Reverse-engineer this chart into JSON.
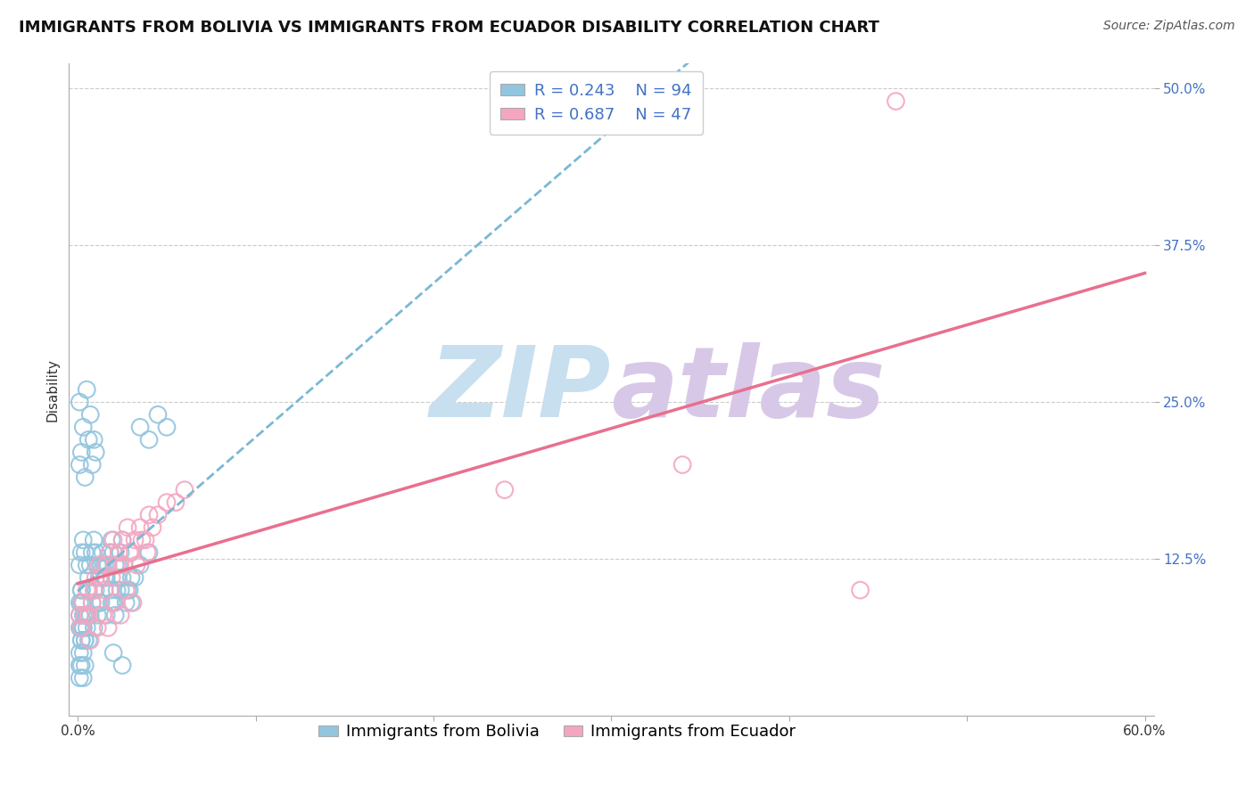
{
  "title": "IMMIGRANTS FROM BOLIVIA VS IMMIGRANTS FROM ECUADOR DISABILITY CORRELATION CHART",
  "source": "Source: ZipAtlas.com",
  "ylabel": "Disability",
  "xlim": [
    0.0,
    0.6
  ],
  "ylim": [
    0.0,
    0.52
  ],
  "xticks": [
    0.0,
    0.1,
    0.2,
    0.3,
    0.4,
    0.5,
    0.6
  ],
  "xticklabels": [
    "0.0%",
    "",
    "",
    "",
    "",
    "",
    "60.0%"
  ],
  "ytick_positions": [
    0.125,
    0.25,
    0.375,
    0.5
  ],
  "yticklabels": [
    "12.5%",
    "25.0%",
    "37.5%",
    "50.0%"
  ],
  "bolivia_color": "#92c5de",
  "ecuador_color": "#f4a6c0",
  "bolivia_line_color": "#7ab8d4",
  "ecuador_line_color": "#e8708e",
  "bolivia_R": 0.243,
  "bolivia_N": 94,
  "ecuador_R": 0.687,
  "ecuador_N": 47,
  "watermark": "ZIPatlas",
  "watermark_color": "#d0e4f0",
  "background_color": "#ffffff",
  "grid_color": "#cccccc",
  "title_fontsize": 13,
  "axis_label_fontsize": 11,
  "tick_fontsize": 11,
  "legend_fontsize": 13,
  "bolivia_seed": 42,
  "ecuador_seed": 7,
  "bolivia_points": [
    [
      0.002,
      0.09
    ],
    [
      0.003,
      0.07
    ],
    [
      0.001,
      0.08
    ],
    [
      0.004,
      0.06
    ],
    [
      0.002,
      0.1
    ],
    [
      0.005,
      0.08
    ],
    [
      0.001,
      0.09
    ],
    [
      0.003,
      0.07
    ],
    [
      0.006,
      0.1
    ],
    [
      0.002,
      0.06
    ],
    [
      0.004,
      0.08
    ],
    [
      0.001,
      0.07
    ],
    [
      0.003,
      0.09
    ],
    [
      0.005,
      0.08
    ],
    [
      0.002,
      0.1
    ],
    [
      0.008,
      0.09
    ],
    [
      0.01,
      0.1
    ],
    [
      0.012,
      0.09
    ],
    [
      0.015,
      0.11
    ],
    [
      0.018,
      0.1
    ],
    [
      0.02,
      0.09
    ],
    [
      0.022,
      0.1
    ],
    [
      0.025,
      0.11
    ],
    [
      0.028,
      0.1
    ],
    [
      0.03,
      0.09
    ],
    [
      0.001,
      0.05
    ],
    [
      0.002,
      0.06
    ],
    [
      0.003,
      0.05
    ],
    [
      0.004,
      0.06
    ],
    [
      0.001,
      0.04
    ],
    [
      0.002,
      0.07
    ],
    [
      0.003,
      0.08
    ],
    [
      0.005,
      0.07
    ],
    [
      0.006,
      0.06
    ],
    [
      0.007,
      0.08
    ],
    [
      0.009,
      0.07
    ],
    [
      0.011,
      0.08
    ],
    [
      0.013,
      0.09
    ],
    [
      0.016,
      0.08
    ],
    [
      0.019,
      0.09
    ],
    [
      0.021,
      0.08
    ],
    [
      0.024,
      0.1
    ],
    [
      0.027,
      0.09
    ],
    [
      0.029,
      0.1
    ],
    [
      0.032,
      0.11
    ],
    [
      0.001,
      0.12
    ],
    [
      0.002,
      0.13
    ],
    [
      0.003,
      0.14
    ],
    [
      0.004,
      0.13
    ],
    [
      0.005,
      0.12
    ],
    [
      0.006,
      0.11
    ],
    [
      0.007,
      0.12
    ],
    [
      0.008,
      0.13
    ],
    [
      0.009,
      0.14
    ],
    [
      0.01,
      0.13
    ],
    [
      0.011,
      0.12
    ],
    [
      0.012,
      0.11
    ],
    [
      0.013,
      0.12
    ],
    [
      0.014,
      0.13
    ],
    [
      0.015,
      0.12
    ],
    [
      0.016,
      0.11
    ],
    [
      0.017,
      0.12
    ],
    [
      0.018,
      0.13
    ],
    [
      0.019,
      0.14
    ],
    [
      0.02,
      0.13
    ],
    [
      0.021,
      0.12
    ],
    [
      0.022,
      0.11
    ],
    [
      0.023,
      0.12
    ],
    [
      0.024,
      0.13
    ],
    [
      0.025,
      0.14
    ],
    [
      0.001,
      0.2
    ],
    [
      0.002,
      0.21
    ],
    [
      0.004,
      0.19
    ],
    [
      0.006,
      0.22
    ],
    [
      0.008,
      0.2
    ],
    [
      0.01,
      0.21
    ],
    [
      0.035,
      0.23
    ],
    [
      0.04,
      0.22
    ],
    [
      0.045,
      0.24
    ],
    [
      0.05,
      0.23
    ],
    [
      0.001,
      0.25
    ],
    [
      0.003,
      0.23
    ],
    [
      0.005,
      0.26
    ],
    [
      0.007,
      0.24
    ],
    [
      0.009,
      0.22
    ],
    [
      0.03,
      0.11
    ],
    [
      0.035,
      0.12
    ],
    [
      0.04,
      0.13
    ],
    [
      0.02,
      0.05
    ],
    [
      0.025,
      0.04
    ],
    [
      0.001,
      0.03
    ],
    [
      0.002,
      0.04
    ],
    [
      0.003,
      0.03
    ],
    [
      0.004,
      0.04
    ]
  ],
  "ecuador_points": [
    [
      0.005,
      0.1
    ],
    [
      0.008,
      0.09
    ],
    [
      0.01,
      0.11
    ],
    [
      0.012,
      0.12
    ],
    [
      0.015,
      0.1
    ],
    [
      0.018,
      0.13
    ],
    [
      0.02,
      0.14
    ],
    [
      0.022,
      0.12
    ],
    [
      0.025,
      0.14
    ],
    [
      0.028,
      0.15
    ],
    [
      0.03,
      0.13
    ],
    [
      0.032,
      0.14
    ],
    [
      0.035,
      0.15
    ],
    [
      0.038,
      0.14
    ],
    [
      0.04,
      0.16
    ],
    [
      0.042,
      0.15
    ],
    [
      0.045,
      0.16
    ],
    [
      0.05,
      0.17
    ],
    [
      0.055,
      0.17
    ],
    [
      0.06,
      0.18
    ],
    [
      0.001,
      0.08
    ],
    [
      0.003,
      0.09
    ],
    [
      0.006,
      0.08
    ],
    [
      0.009,
      0.1
    ],
    [
      0.013,
      0.11
    ],
    [
      0.016,
      0.12
    ],
    [
      0.019,
      0.11
    ],
    [
      0.023,
      0.13
    ],
    [
      0.026,
      0.12
    ],
    [
      0.029,
      0.13
    ],
    [
      0.033,
      0.12
    ],
    [
      0.036,
      0.14
    ],
    [
      0.039,
      0.13
    ],
    [
      0.002,
      0.07
    ],
    [
      0.004,
      0.08
    ],
    [
      0.007,
      0.06
    ],
    [
      0.011,
      0.07
    ],
    [
      0.014,
      0.08
    ],
    [
      0.017,
      0.07
    ],
    [
      0.021,
      0.09
    ],
    [
      0.024,
      0.08
    ],
    [
      0.027,
      0.1
    ],
    [
      0.031,
      0.09
    ],
    [
      0.46,
      0.49
    ],
    [
      0.34,
      0.2
    ],
    [
      0.24,
      0.18
    ],
    [
      0.44,
      0.1
    ]
  ]
}
